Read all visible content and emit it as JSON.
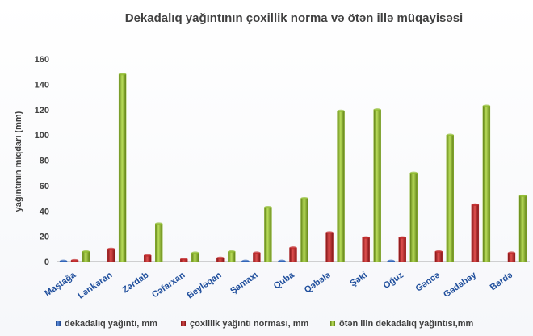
{
  "chart_data": {
    "type": "bar",
    "title": "Dekadalıq yağıntının çoxillik norma  və ötən illə müqayisəsi",
    "ylabel": "yağıntının miqdarı (mm)",
    "xlabel": "",
    "ylim": [
      0,
      160
    ],
    "yticks": [
      0,
      20,
      40,
      60,
      80,
      100,
      120,
      140,
      160
    ],
    "grid": false,
    "legend_position": "bottom",
    "categories": [
      "Maştağa",
      "Lənkəran",
      "Zərdab",
      "Cəfərxan",
      "Beyləqan",
      "Şamaxı",
      "Quba",
      "Qəbələ",
      "Şəki",
      "Oğuz",
      "Gəncə",
      "Gədəbəy",
      "Bərdə"
    ],
    "series": [
      {
        "name": "dekadalıq yağıntı, mm",
        "color": "#2e63b8",
        "values": [
          0.5,
          0,
          0,
          0,
          0,
          0.5,
          0.5,
          0,
          0,
          0.5,
          0,
          0,
          0
        ]
      },
      {
        "name": "çoxillik yağıntı norması, mm",
        "color": "#c0282a",
        "values": [
          1,
          10,
          5,
          2,
          3,
          7,
          11,
          23,
          19,
          19,
          8,
          45,
          7
        ]
      },
      {
        "name": "ötən ilin dekadalıq yağıntısı,mm",
        "color": "#8fba2e",
        "values": [
          8,
          148,
          30,
          7,
          8,
          43,
          50,
          119,
          120,
          70,
          100,
          123,
          52
        ]
      }
    ]
  }
}
